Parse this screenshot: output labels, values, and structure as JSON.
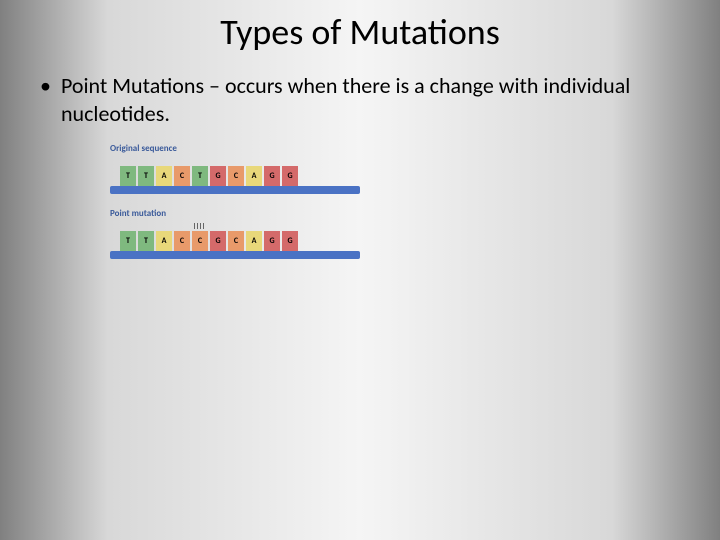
{
  "title": "Types of Mutations",
  "bullet": {
    "text": "Point Mutations – occurs when there is a change with individual nucleotides."
  },
  "diagram": {
    "original": {
      "label": "Original sequence",
      "bases": [
        "T",
        "T",
        "A",
        "C",
        "T",
        "G",
        "C",
        "A",
        "G",
        "G"
      ],
      "highlight_index": -1
    },
    "mutation": {
      "label": "Point mutation",
      "bases": [
        "T",
        "T",
        "A",
        "C",
        "C",
        "G",
        "C",
        "A",
        "G",
        "G"
      ],
      "highlight_index": 4
    },
    "base_colors": {
      "T": "#7fb97f",
      "A": "#e8d87a",
      "C": "#e89a6a",
      "G": "#d46a6a"
    },
    "backbone_color": "#4a72c4"
  }
}
